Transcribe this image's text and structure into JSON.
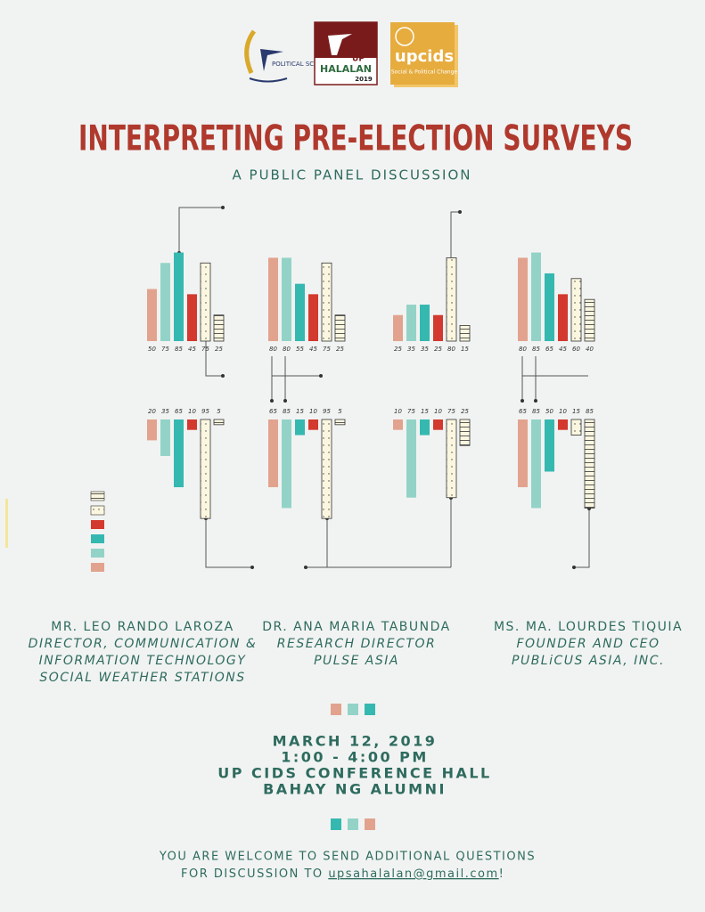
{
  "logos": {
    "polsci": "POLITICAL SCIENCE",
    "halalan_up": "UP",
    "halalan": "HALALAN",
    "halalan_year": "2019",
    "cids": "upcids",
    "cids_sub": "Social & Political Change"
  },
  "header": {
    "title": "INTERPRETING PRE-ELECTION SURVEYS",
    "subtitle": "A PUBLIC PANEL DISCUSSION"
  },
  "bar_colors": [
    "#e2a38e",
    "#93d3c7",
    "#35b8b0",
    "#d3392e",
    "#fbf6df",
    "#fbf6df"
  ],
  "chart_data": [
    {
      "type": "bar",
      "orientation": "up",
      "values": [
        50,
        75,
        85,
        45,
        75,
        25
      ]
    },
    {
      "type": "bar",
      "orientation": "up",
      "values": [
        80,
        80,
        55,
        45,
        75,
        25
      ]
    },
    {
      "type": "bar",
      "orientation": "up",
      "values": [
        25,
        35,
        35,
        25,
        80,
        15
      ]
    },
    {
      "type": "bar",
      "orientation": "up",
      "values": [
        80,
        85,
        65,
        45,
        60,
        40
      ]
    },
    {
      "type": "bar",
      "orientation": "down",
      "values": [
        20,
        35,
        65,
        10,
        95,
        5
      ]
    },
    {
      "type": "bar",
      "orientation": "down",
      "values": [
        65,
        85,
        15,
        10,
        95,
        5
      ]
    },
    {
      "type": "bar",
      "orientation": "down",
      "values": [
        10,
        75,
        15,
        10,
        75,
        25
      ]
    },
    {
      "type": "bar",
      "orientation": "down",
      "values": [
        65,
        85,
        50,
        10,
        15,
        85
      ]
    }
  ],
  "speakers": [
    {
      "name": "MR. LEO RANDO LAROZA",
      "role": [
        "DIRECTOR, COMMUNICATION &",
        "INFORMATION TECHNOLOGY",
        "SOCIAL WEATHER STATIONS"
      ]
    },
    {
      "name": "DR. ANA MARIA TABUNDA",
      "role": [
        "RESEARCH DIRECTOR",
        "PULSE ASIA"
      ]
    },
    {
      "name": "MS. MA. LOURDES TIQUIA",
      "role": [
        "FOUNDER AND CEO",
        "PUBLiCUS ASIA, INC."
      ]
    }
  ],
  "event": {
    "date": "MARCH 12, 2019",
    "time": "1:00 - 4:00 PM",
    "venue": "UP CIDS CONFERENCE HALL",
    "building": "BAHAY NG ALUMNI"
  },
  "footer": {
    "line1": "YOU ARE WELCOME TO SEND ADDITIONAL QUESTIONS",
    "line2": "FOR DISCUSSION TO",
    "email": "upsahalalan@gmail.com",
    "end": "!"
  }
}
